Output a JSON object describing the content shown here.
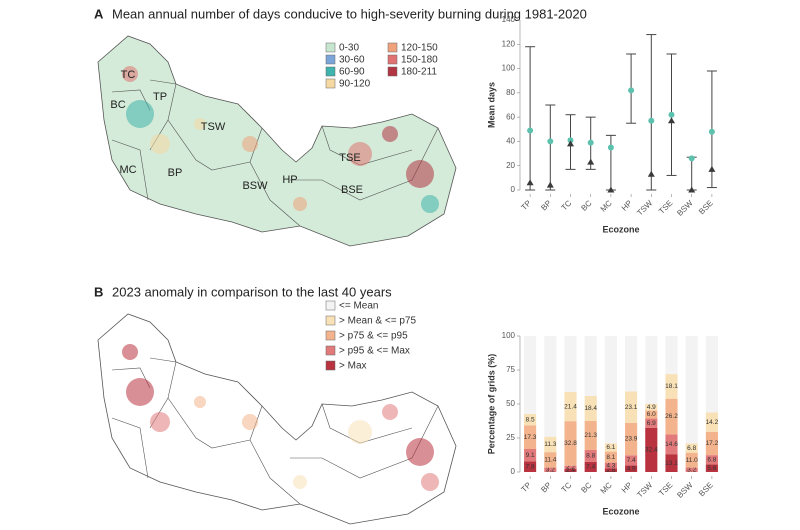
{
  "chart_data": [
    {
      "type": "map",
      "panel": "A",
      "title": "Mean annual number of days conducive to high-severity burning during 1981-2020",
      "fill": "#d3ebd8",
      "legend": [
        {
          "name": "0-30",
          "color": "#c6e6cf"
        },
        {
          "name": "30-60",
          "color": "#7ba5d8"
        },
        {
          "name": "60-90",
          "color": "#3fb3ad"
        },
        {
          "name": "90-120",
          "color": "#f6d9a2"
        },
        {
          "name": "120-150",
          "color": "#f0a27c"
        },
        {
          "name": "150-180",
          "color": "#e07272"
        },
        {
          "name": "180-211",
          "color": "#b23543"
        }
      ],
      "region_labels": [
        "TC",
        "BC",
        "TP",
        "TSW",
        "MC",
        "BP",
        "BSW",
        "HP",
        "TSE",
        "BSE"
      ]
    },
    {
      "type": "range",
      "xlabel": "Ecozone",
      "ylabel": "Mean days",
      "categories": [
        "TP",
        "BP",
        "TC",
        "BC",
        "MC",
        "HP",
        "TSW",
        "TSE",
        "BSW",
        "BSE"
      ],
      "ylim": [
        0,
        140
      ],
      "yticks": [
        0,
        20,
        40,
        60,
        80,
        100,
        120,
        140
      ],
      "range_low": [
        0,
        0,
        17,
        17,
        0,
        55,
        0,
        12,
        0,
        2
      ],
      "range_high": [
        118,
        70,
        62,
        60,
        45,
        112,
        128,
        112,
        27,
        98
      ],
      "dot_values": [
        49,
        40,
        41,
        39,
        35,
        82,
        57,
        62,
        26,
        48
      ],
      "dot_color": "#5cc2ad",
      "triangle_values": [
        6,
        4,
        38,
        23,
        0,
        null,
        13,
        57,
        0,
        17
      ],
      "triangle_color": "#3a3a3a",
      "whisker_color": "#444444"
    },
    {
      "type": "map",
      "panel": "B",
      "title": "2023 anomaly in comparison to the last 40 years",
      "fill": "#ffffff"
    },
    {
      "type": "stacked_bar",
      "xlabel": "Ecozone",
      "ylabel": "Percentage of grids (%)",
      "categories": [
        "TP",
        "BP",
        "TC",
        "BC",
        "MC",
        "HP",
        "TSW",
        "TSE",
        "BSW",
        "BSE"
      ],
      "ylim": [
        0,
        100
      ],
      "yticks": [
        0,
        25,
        50,
        75,
        100
      ],
      "series": [
        {
          "name": "> Max",
          "color": "#b8333f",
          "values": [
            7.8,
            null,
            2.4,
            7.4,
            2.6,
            4.9,
            32.4,
            13.1,
            null,
            5.6
          ],
          "value_labels": [
            "7.8",
            null,
            "2.4",
            "7.4",
            "2.6",
            "4.9",
            "32.4",
            "13.1",
            null,
            "5.6"
          ]
        },
        {
          "name": "> p95 & <= Max",
          "color": "#e27a7b",
          "values": [
            9.1,
            3.2,
            2.2,
            8.8,
            4.3,
            7.4,
            6.9,
            14.6,
            3.2,
            6.8
          ],
          "value_labels": [
            "9.1",
            "3.2",
            "2.2",
            "8.8",
            "4.3",
            "7.4",
            "6.9",
            "14.6",
            "3.2",
            "6.8"
          ]
        },
        {
          "name": "> p75 & <= p95",
          "color": "#f3b48d",
          "values": [
            17.3,
            11.4,
            32.8,
            21.3,
            8.1,
            23.9,
            6.0,
            26.2,
            11.0,
            17.2
          ],
          "value_labels": [
            "17.3",
            "11.4",
            "32.8",
            "21.3",
            "8.1",
            "23.9",
            "6.0",
            "26.2",
            "11.0",
            "17.2"
          ]
        },
        {
          "name": "> Mean & <= p75",
          "color": "#f8e1b6",
          "values": [
            8.5,
            11.3,
            21.4,
            18.4,
            6.1,
            23.1,
            4.9,
            18.1,
            6.8,
            14.2
          ],
          "value_labels": [
            "8.5",
            "11.3",
            "21.4",
            "18.4",
            "6.1",
            "23.1",
            "4.9",
            "18.1",
            "6.8",
            "14.2"
          ]
        },
        {
          "name": "<= Mean",
          "color": "#f3f3f3",
          "values": [
            57.3,
            74.1,
            41.2,
            44.1,
            78.9,
            40.7,
            49.8,
            28,
            79,
            56.2
          ]
        }
      ],
      "legend_order": [
        4,
        3,
        2,
        1,
        0
      ]
    }
  ]
}
